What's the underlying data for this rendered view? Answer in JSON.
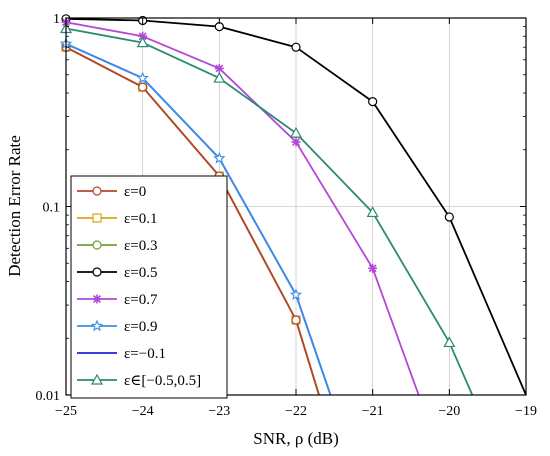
{
  "chart_data": {
    "type": "line",
    "title": "",
    "xlabel": "SNR, ρ (dB)",
    "ylabel": "Detection Error Rate",
    "xlim": [
      -25,
      -19
    ],
    "ylim": [
      0.01,
      1
    ],
    "yscale": "log",
    "grid": true,
    "legend_position": "bottom-left",
    "x_ticks": [
      "−25",
      "−24",
      "−23",
      "−22",
      "−21",
      "−20",
      "−19"
    ],
    "y_ticks": [
      "0.01",
      "0.1",
      "1"
    ],
    "series": [
      {
        "name": "ε=0",
        "color": "#b5452c",
        "marker": "circle",
        "x": [
          -25,
          -24,
          -23,
          -22,
          -21.7
        ],
        "y": [
          0.7,
          0.43,
          0.145,
          0.025,
          0.01
        ]
      },
      {
        "name": "ε=0.1",
        "color": "#e0a118",
        "marker": "square",
        "x": [
          -25,
          -24,
          -23,
          -22,
          -21.7
        ],
        "y": [
          0.7,
          0.43,
          0.145,
          0.025,
          0.01
        ]
      },
      {
        "name": "ε=0.3",
        "color": "#6aa531",
        "marker": "circle",
        "x": [
          -25,
          -24,
          -23,
          -22,
          -21.7
        ],
        "y": [
          0.7,
          0.43,
          0.145,
          0.025,
          0.01
        ]
      },
      {
        "name": "ε=0.5",
        "color": "#000000",
        "marker": "circle",
        "x": [
          -25,
          -24,
          -23,
          -22,
          -21,
          -20,
          -19
        ],
        "y": [
          0.99,
          0.97,
          0.9,
          0.7,
          0.36,
          0.088,
          0.01
        ]
      },
      {
        "name": "ε=0.7",
        "color": "#b347d9",
        "marker": "star",
        "x": [
          -25,
          -24,
          -23,
          -22,
          -21,
          -20.4
        ],
        "y": [
          0.95,
          0.8,
          0.54,
          0.22,
          0.047,
          0.01
        ]
      },
      {
        "name": "ε=0.9",
        "color": "#3b8ee8",
        "marker": "star5",
        "x": [
          -25,
          -24,
          -23,
          -22,
          -21.55
        ],
        "y": [
          0.73,
          0.48,
          0.18,
          0.034,
          0.01
        ]
      },
      {
        "name": "ε=−0.1",
        "color": "#1e22d6",
        "marker": "none",
        "x": [
          -25,
          -24,
          -23,
          -22,
          -21.55
        ],
        "y": [
          0.73,
          0.48,
          0.18,
          0.034,
          0.01
        ]
      },
      {
        "name": "ε∈[−0.5,0.5]",
        "color": "#2a8a72",
        "marker": "triangle",
        "x": [
          -25,
          -24,
          -23,
          -22,
          -21,
          -20,
          -19.7
        ],
        "y": [
          0.88,
          0.74,
          0.48,
          0.245,
          0.093,
          0.019,
          0.01
        ]
      }
    ]
  }
}
